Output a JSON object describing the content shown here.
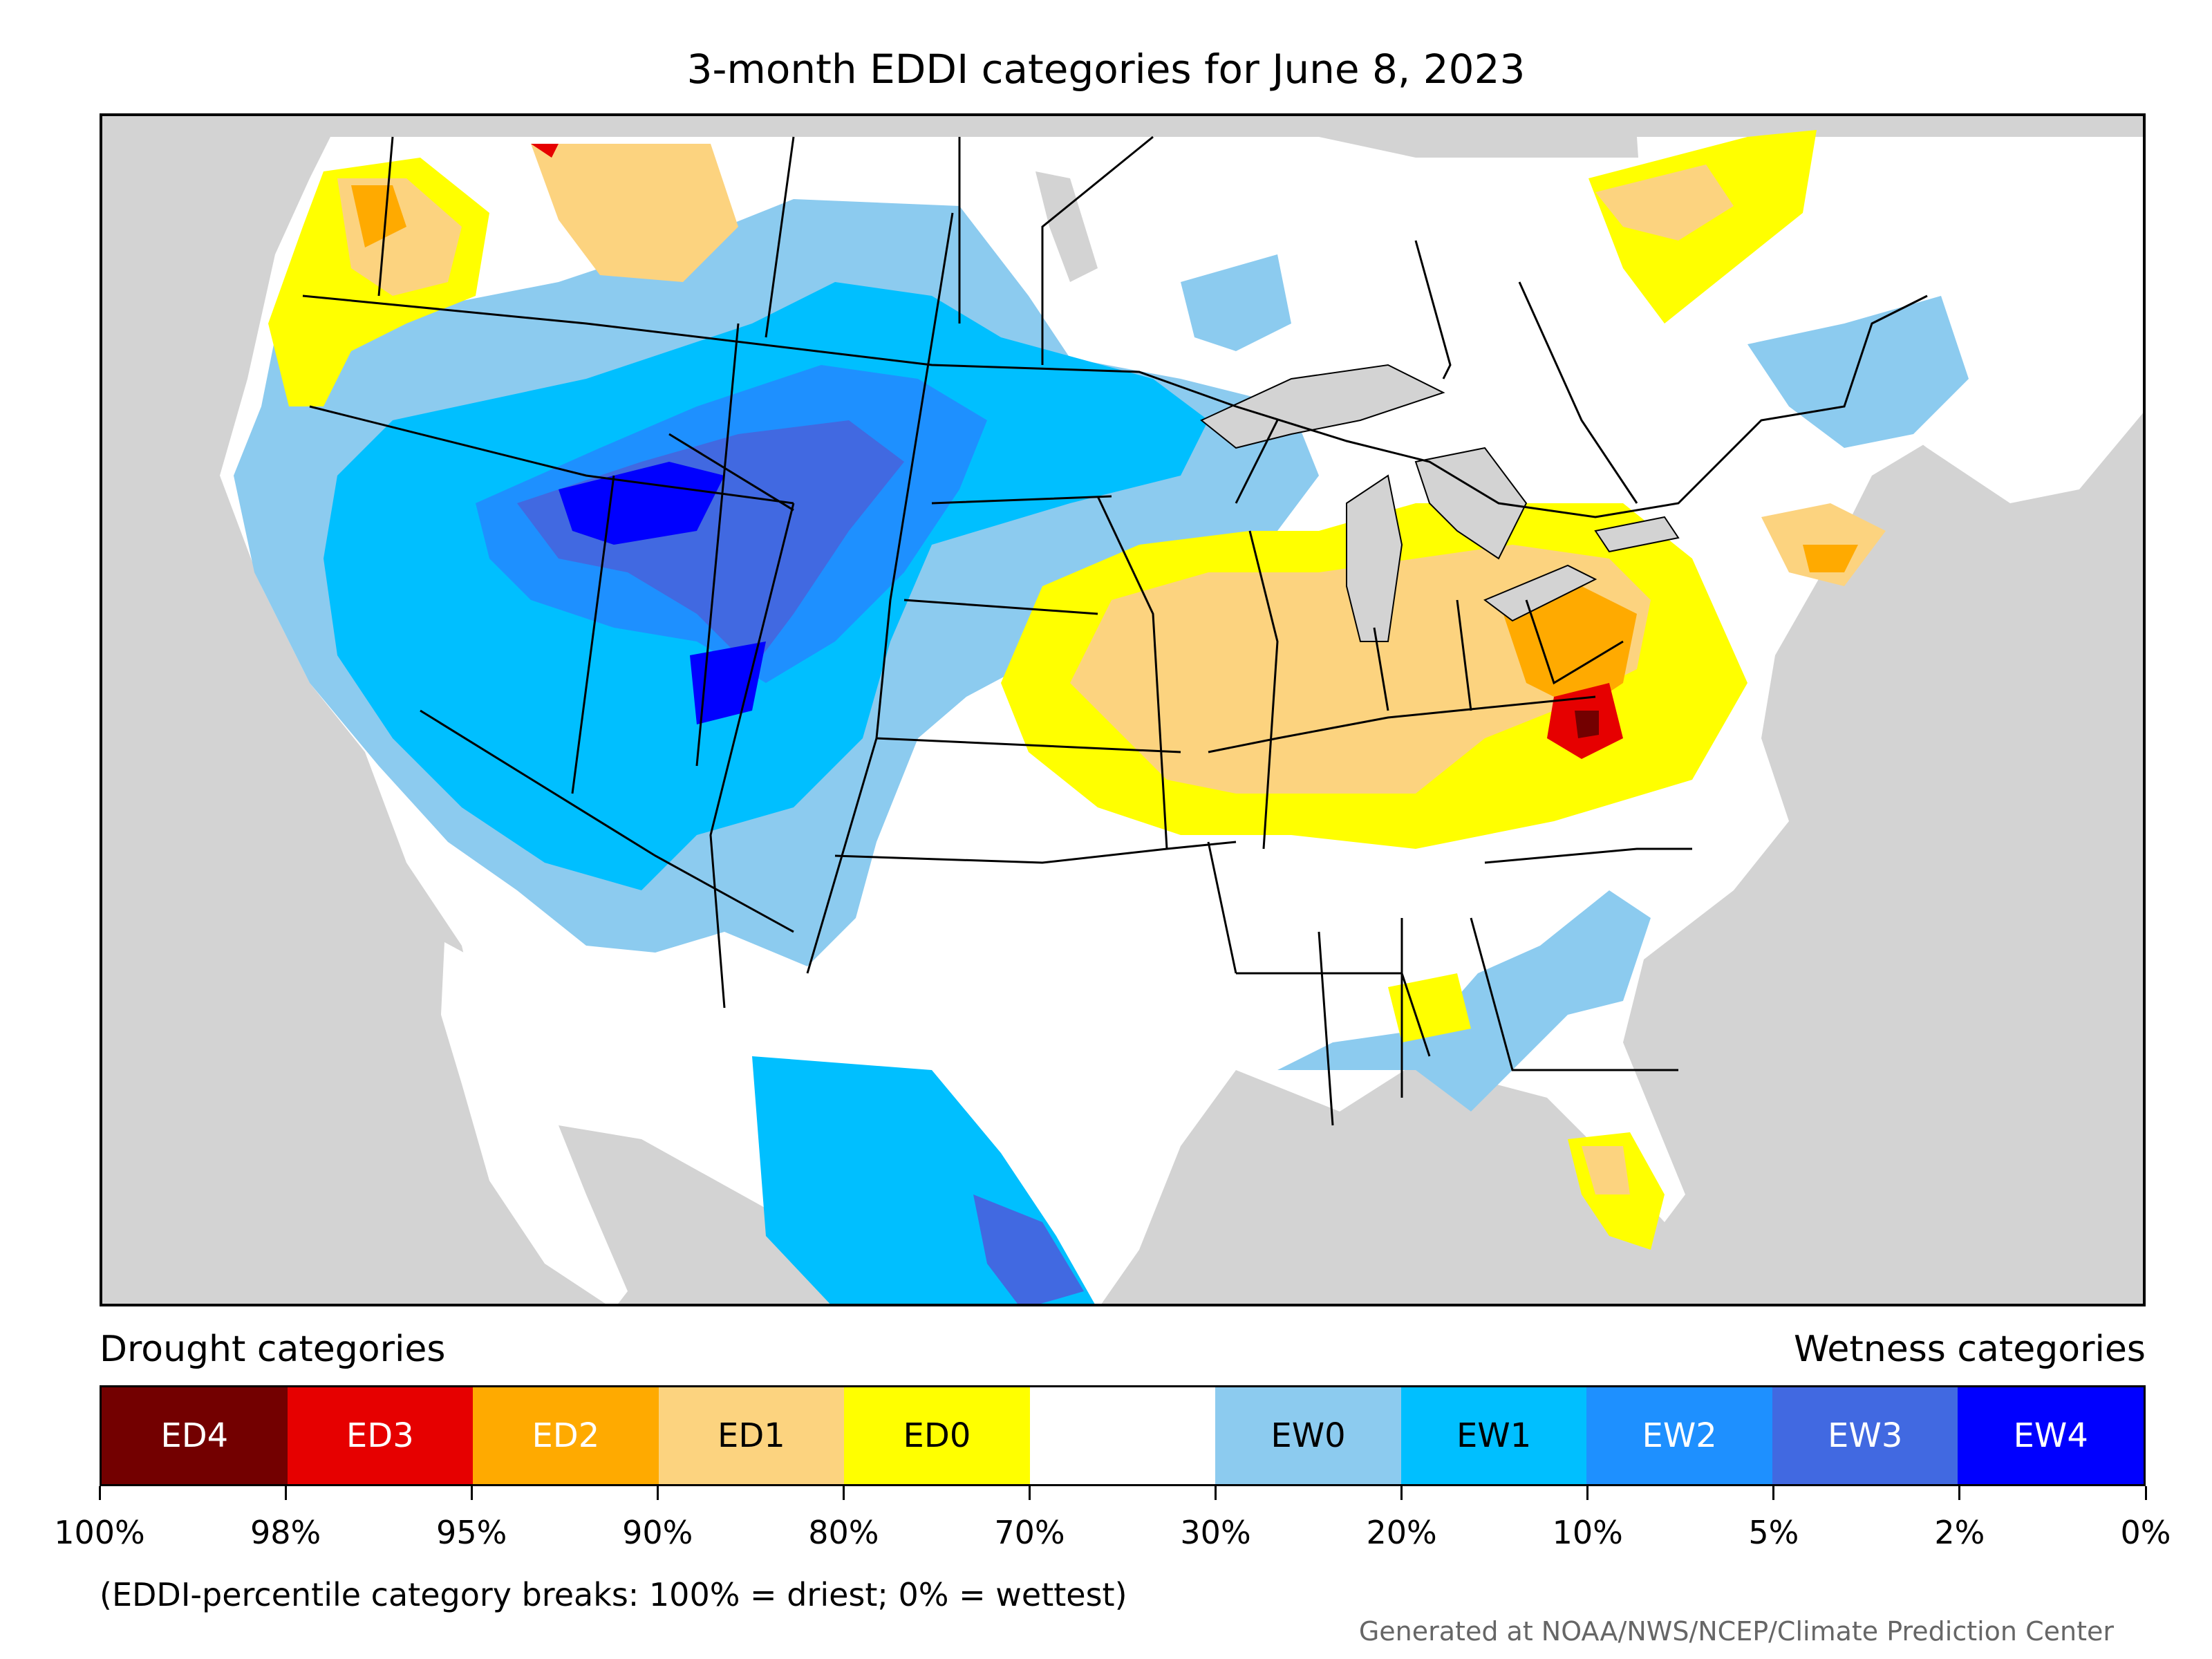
{
  "title": "3-month EDDI categories for June 8, 2023",
  "legend": {
    "drought_heading": "Drought categories",
    "wetness_heading": "Wetness categories",
    "categories": [
      {
        "label": "ED4",
        "color": "#730000",
        "text_color": "#ffffff"
      },
      {
        "label": "ED3",
        "color": "#e60000",
        "text_color": "#ffffff"
      },
      {
        "label": "ED2",
        "color": "#ffaa00",
        "text_color": "#ffffff"
      },
      {
        "label": "ED1",
        "color": "#fcd37f",
        "text_color": "#000000"
      },
      {
        "label": "ED0",
        "color": "#ffff00",
        "text_color": "#000000"
      },
      {
        "label": "",
        "color": "#ffffff",
        "text_color": "#000000"
      },
      {
        "label": "EW0",
        "color": "#8ccbef",
        "text_color": "#000000"
      },
      {
        "label": "EW1",
        "color": "#00bfff",
        "text_color": "#000000"
      },
      {
        "label": "EW2",
        "color": "#1e90ff",
        "text_color": "#ffffff"
      },
      {
        "label": "EW3",
        "color": "#4169e1",
        "text_color": "#ffffff"
      },
      {
        "label": "EW4",
        "color": "#0000ff",
        "text_color": "#ffffff"
      }
    ],
    "breaks": [
      "100%",
      "98%",
      "95%",
      "90%",
      "80%",
      "70%",
      "30%",
      "20%",
      "10%",
      "5%",
      "2%",
      "0%"
    ]
  },
  "note": "(EDDI-percentile category breaks: 100% = driest; 0% = wettest)",
  "credit": "Generated at NOAA/NWS/NCEP/Climate Prediction Center",
  "map": {
    "background_color": "#d3d3d3",
    "land_color": "#ffffff",
    "border_color": "#000000"
  }
}
